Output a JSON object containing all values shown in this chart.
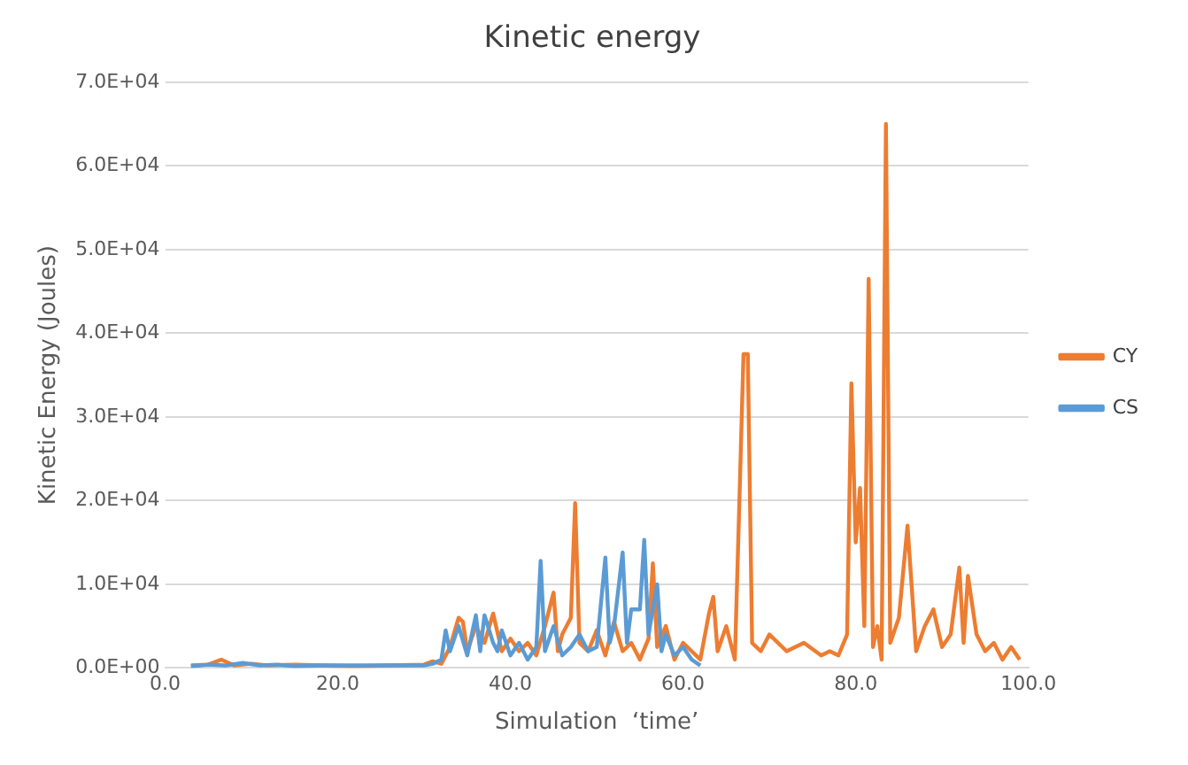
{
  "chart_data": {
    "type": "line",
    "title": "Kinetic energy",
    "xlabel": "Simulation  ‘time’",
    "ylabel": "Kinetic Energy (Joules)",
    "xlim": [
      0,
      100
    ],
    "xticks": [
      {
        "value": 0,
        "label": "0.0"
      },
      {
        "value": 20,
        "label": "20.0"
      },
      {
        "value": 40,
        "label": "40.0"
      },
      {
        "value": 60,
        "label": "60.0"
      },
      {
        "value": 80,
        "label": "80.0"
      },
      {
        "value": 100,
        "label": "100.0"
      }
    ],
    "ylim": [
      0,
      70000
    ],
    "yticks": [
      {
        "value": 0,
        "label": "0.0E+00"
      },
      {
        "value": 10000,
        "label": "1.0E+04"
      },
      {
        "value": 20000,
        "label": "2.0E+04"
      },
      {
        "value": 30000,
        "label": "3.0E+04"
      },
      {
        "value": 40000,
        "label": "4.0E+04"
      },
      {
        "value": 50000,
        "label": "5.0E+04"
      },
      {
        "value": 60000,
        "label": "6.0E+04"
      },
      {
        "value": 70000,
        "label": "7.0E+04"
      }
    ],
    "grid": "y",
    "legend": "right",
    "marker": "none",
    "line_style": "solid",
    "series": [
      {
        "name": "CY",
        "color": "#ed7d31",
        "x": [
          3,
          5,
          6.5,
          8,
          10,
          12,
          15,
          18,
          22,
          26,
          30,
          31,
          32,
          33,
          34,
          34.5,
          35,
          36,
          37,
          38,
          39,
          40,
          41,
          42,
          43,
          44,
          45,
          45.5,
          46,
          47,
          47.5,
          48,
          49,
          50,
          51,
          52,
          53,
          54,
          55,
          56,
          56.5,
          57,
          58,
          59,
          60,
          61,
          62,
          63,
          63.5,
          64,
          65,
          66,
          66.5,
          67,
          67.5,
          68,
          69,
          70,
          72,
          74,
          76,
          77,
          78,
          79,
          79.5,
          80,
          80.5,
          81,
          81.5,
          82,
          82.5,
          83,
          83.5,
          84,
          85,
          86,
          87,
          88,
          89,
          90,
          91,
          92,
          92.5,
          93,
          94,
          95,
          96,
          97,
          98,
          99
        ],
        "values": [
          300,
          400,
          1000,
          300,
          500,
          300,
          400,
          300,
          200,
          300,
          400,
          800,
          500,
          2500,
          6000,
          5500,
          2000,
          5000,
          3000,
          6500,
          2000,
          3500,
          2000,
          3000,
          1500,
          5000,
          9000,
          2000,
          4000,
          6000,
          19700,
          3000,
          2000,
          4500,
          1500,
          5500,
          2000,
          3000,
          1000,
          3500,
          12500,
          2500,
          5000,
          1000,
          3000,
          2000,
          1000,
          6500,
          8500,
          2000,
          5000,
          1000,
          19000,
          37500,
          37500,
          3000,
          2000,
          4000,
          2000,
          3000,
          1500,
          2000,
          1500,
          4000,
          34000,
          15000,
          21500,
          5000,
          46500,
          2500,
          5000,
          1000,
          65000,
          3000,
          6000,
          17000,
          2000,
          5000,
          7000,
          2500,
          4000,
          12000,
          3000,
          11000,
          4000,
          2000,
          3000,
          1000,
          2500,
          1000
        ],
        "line_style": "solid"
      },
      {
        "name": "CS",
        "color": "#5b9bd5",
        "x": [
          3,
          5,
          7,
          9,
          11,
          13,
          15,
          18,
          22,
          26,
          30,
          31,
          32,
          32.5,
          33,
          34,
          35,
          36,
          36.5,
          37,
          38,
          38.5,
          39,
          40,
          41,
          42,
          43,
          43.5,
          44,
          45,
          46,
          47,
          48,
          49,
          50,
          51,
          51.5,
          52,
          53,
          53.5,
          54,
          55,
          55.5,
          56,
          57,
          57.5,
          58,
          59,
          60,
          61,
          62
        ],
        "values": [
          200,
          400,
          300,
          600,
          300,
          400,
          200,
          300,
          300,
          300,
          300,
          500,
          1000,
          4500,
          2000,
          5000,
          1500,
          6300,
          2000,
          6300,
          3000,
          2000,
          4500,
          1500,
          3000,
          1000,
          2500,
          12800,
          2000,
          5000,
          1500,
          2500,
          4000,
          2000,
          2500,
          13200,
          3000,
          5000,
          13800,
          3000,
          7000,
          7000,
          15300,
          4000,
          10000,
          2000,
          4000,
          1500,
          2500,
          1000,
          300
        ]
      }
    ]
  }
}
